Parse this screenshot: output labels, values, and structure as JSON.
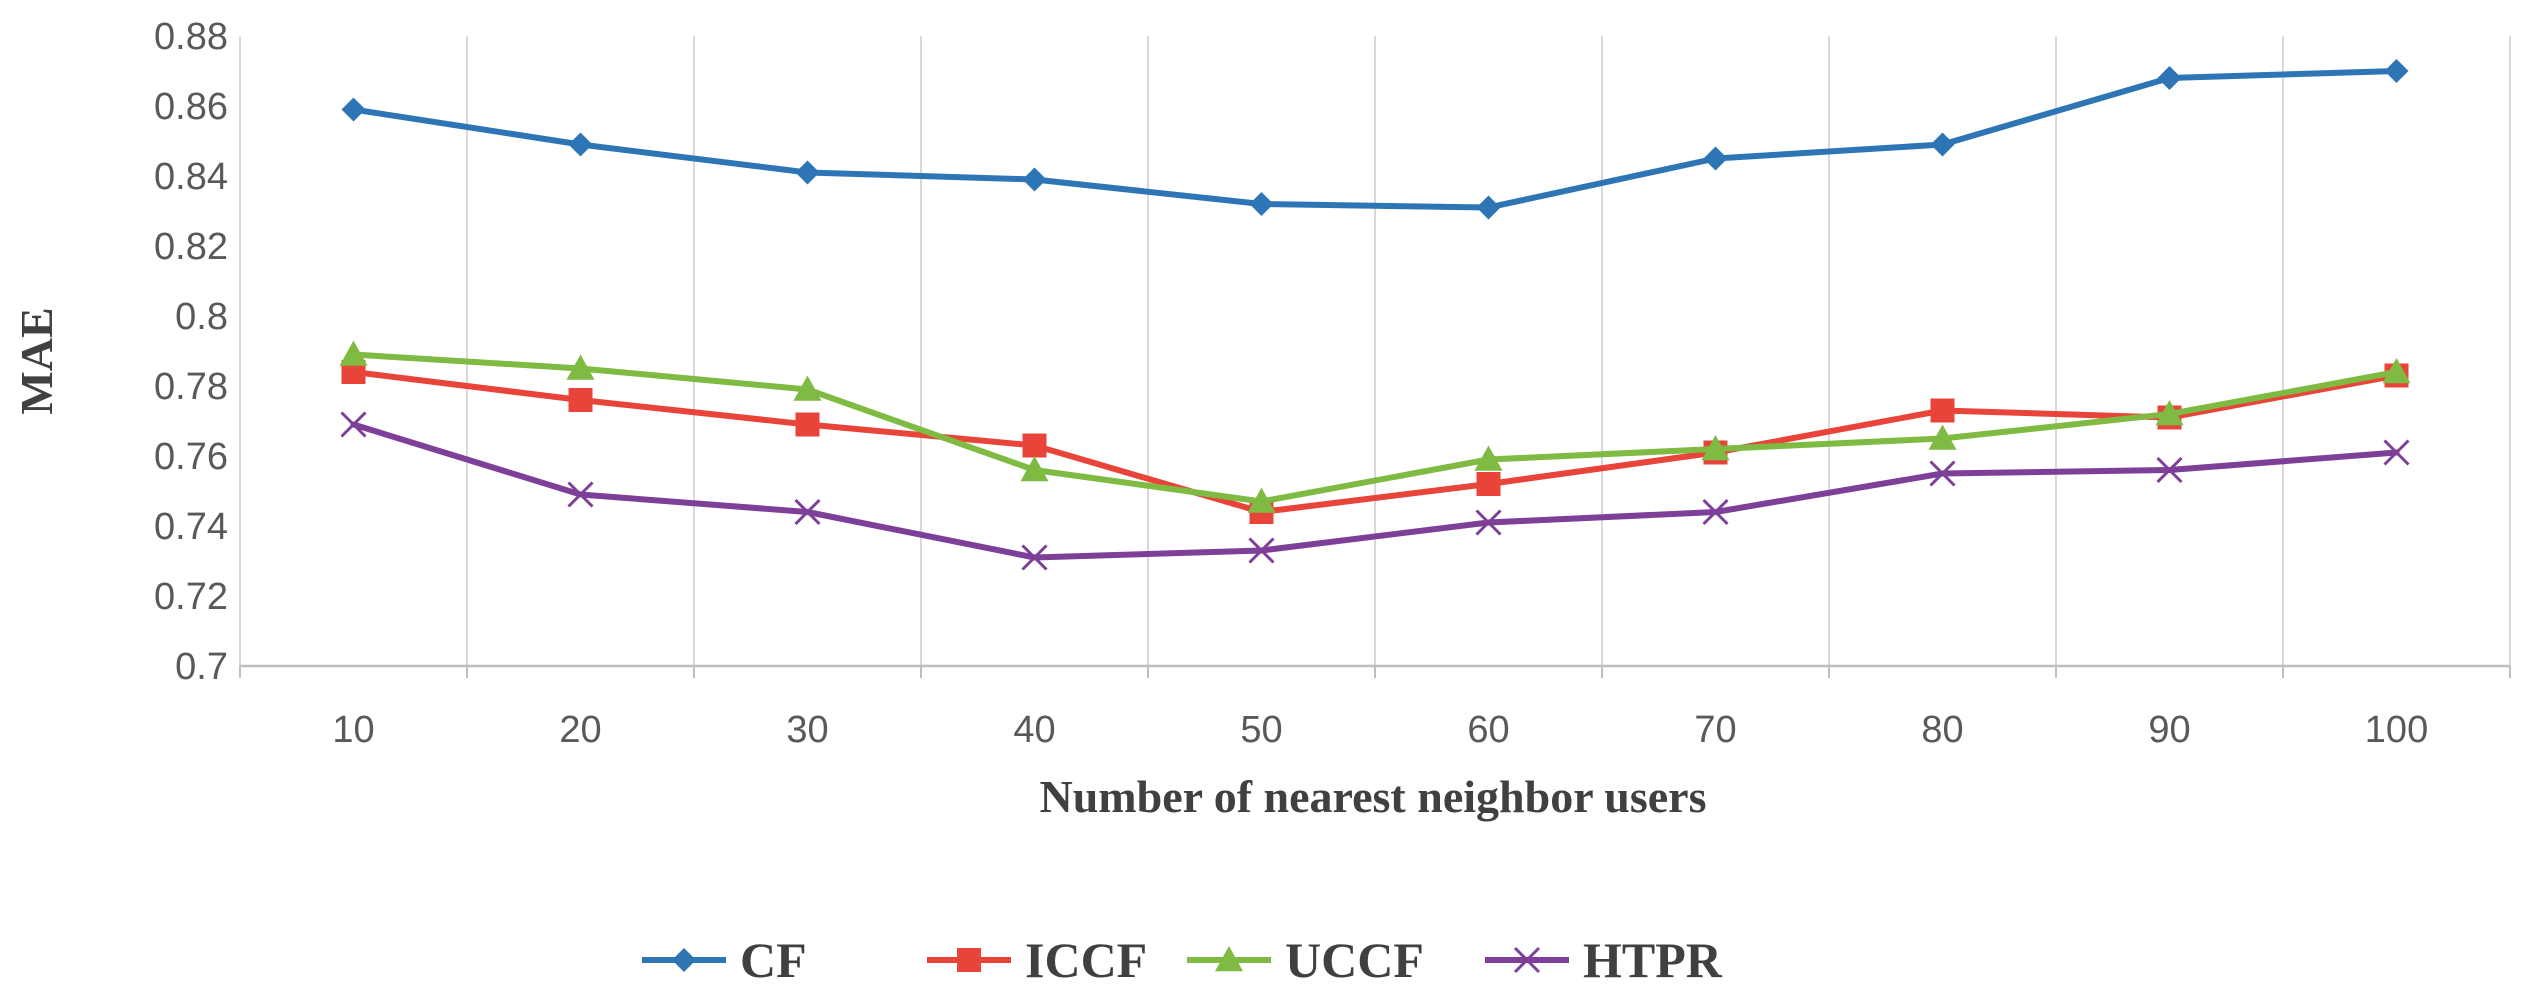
{
  "chart_data": {
    "type": "line",
    "title": "",
    "xlabel": "Number of nearest neighbor users",
    "ylabel": "MAE",
    "categories": [
      "10",
      "20",
      "30",
      "40",
      "50",
      "60",
      "70",
      "80",
      "90",
      "100"
    ],
    "ylim": [
      0.7,
      0.88
    ],
    "yticks": [
      "0.7",
      "0.72",
      "0.74",
      "0.76",
      "0.78",
      "0.8",
      "0.82",
      "0.84",
      "0.86",
      "0.88"
    ],
    "grid": "vertical",
    "legend_position": "bottom",
    "series": [
      {
        "name": "CF",
        "color": "#2E75B6",
        "marker": "diamond",
        "values": [
          0.859,
          0.849,
          0.841,
          0.839,
          0.832,
          0.831,
          0.845,
          0.849,
          0.868,
          0.87
        ]
      },
      {
        "name": "ICCF",
        "color": "#E8443A",
        "marker": "square",
        "values": [
          0.784,
          0.776,
          0.769,
          0.763,
          0.744,
          0.752,
          0.761,
          0.773,
          0.771,
          0.783
        ]
      },
      {
        "name": "UCCF",
        "color": "#7FBA42",
        "marker": "triangle",
        "values": [
          0.789,
          0.785,
          0.779,
          0.756,
          0.747,
          0.759,
          0.762,
          0.765,
          0.772,
          0.784
        ]
      },
      {
        "name": "HTPR",
        "color": "#7E3F98",
        "marker": "x",
        "values": [
          0.769,
          0.749,
          0.744,
          0.731,
          0.733,
          0.741,
          0.744,
          0.755,
          0.756,
          0.761
        ]
      }
    ]
  }
}
